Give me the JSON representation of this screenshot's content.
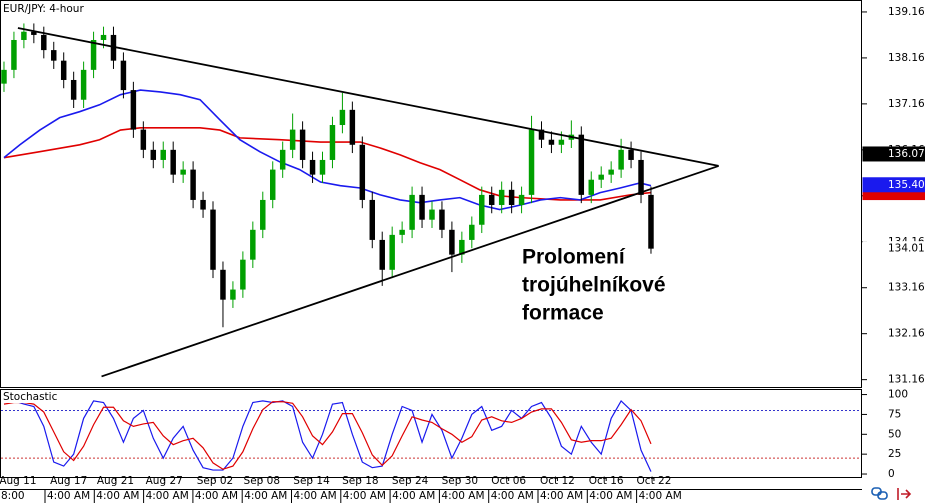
{
  "chart_data": [
    {
      "type": "candlestick",
      "title": "EUR/JPY: 4-hour",
      "xlim": [
        -0.4,
        86.2
      ],
      "xticks": [
        {
          "value": 1.4,
          "label": "Aug 11"
        },
        {
          "value": 6.5,
          "label": "Aug 17"
        },
        {
          "value": 11.2,
          "label": "Aug 21"
        },
        {
          "value": 16.1,
          "label": "Aug 27"
        },
        {
          "value": 21.2,
          "label": "Sep 02"
        },
        {
          "value": 25.9,
          "label": "Sep 08"
        },
        {
          "value": 30.9,
          "label": "Sep 14"
        },
        {
          "value": 35.8,
          "label": "Sep 18"
        },
        {
          "value": 40.8,
          "label": "Sep 24"
        },
        {
          "value": 45.8,
          "label": "Sep 30"
        },
        {
          "value": 50.7,
          "label": "Oct 06"
        },
        {
          "value": 55.6,
          "label": "Oct 12"
        },
        {
          "value": 60.5,
          "label": "Oct 16"
        },
        {
          "value": 65.3,
          "label": "Oct 22"
        }
      ],
      "time_labels": [
        "8:00",
        "4:00 AM",
        "4:00 AM",
        "4:00 AM",
        "4:00 AM",
        "4:00 AM",
        "4:00 AM",
        "4:00 AM",
        "4:00 AM",
        "4:00 AM",
        "4:00 AM",
        "4:00 AM",
        "4:00 AM",
        "4:00 AM"
      ],
      "ylim": [
        131.0,
        139.42
      ],
      "yticks": [
        131.16,
        132.16,
        133.16,
        134.16,
        135.16,
        136.16,
        137.16,
        138.16,
        139.16
      ],
      "up_color": "#00a000",
      "down_color": "#000000",
      "open": [
        137.6,
        137.9,
        138.55,
        138.73,
        138.66,
        138.33,
        138.1,
        137.68,
        137.25,
        137.9,
        138.55,
        138.66,
        138.1,
        137.46,
        136.6,
        136.16,
        135.94,
        136.16,
        135.62,
        135.73,
        135.07,
        134.86,
        133.55,
        132.9,
        133.12,
        133.77,
        134.42,
        135.07,
        135.73,
        136.16,
        136.6,
        135.94,
        135.62,
        135.94,
        136.7,
        137.03,
        136.27,
        135.07,
        134.2,
        133.55,
        134.31,
        134.42,
        135.18,
        134.64,
        134.86,
        134.42,
        133.88,
        134.2,
        134.53,
        135.18,
        134.96,
        135.29,
        134.96,
        135.18,
        136.6,
        136.38,
        136.27,
        136.38,
        136.49,
        135.18,
        135.51,
        135.62,
        135.73,
        136.16,
        135.94,
        135.18
      ],
      "high": [
        138.08,
        138.73,
        138.91,
        138.91,
        138.84,
        138.51,
        138.28,
        137.86,
        138.08,
        138.73,
        138.84,
        138.84,
        138.28,
        137.64,
        136.78,
        136.34,
        136.34,
        136.34,
        135.91,
        135.91,
        135.25,
        135.04,
        133.73,
        133.3,
        133.95,
        134.6,
        135.25,
        135.91,
        136.34,
        136.95,
        136.78,
        136.12,
        136.12,
        136.88,
        137.4,
        137.21,
        136.45,
        135.25,
        134.38,
        134.49,
        134.6,
        135.36,
        135.36,
        135.04,
        135.04,
        134.6,
        134.38,
        134.71,
        135.36,
        135.36,
        135.47,
        135.47,
        135.36,
        136.9,
        136.78,
        136.56,
        136.56,
        136.8,
        136.67,
        135.69,
        135.8,
        135.91,
        136.4,
        136.34,
        136.12,
        135.36
      ],
      "low": [
        137.42,
        137.72,
        138.37,
        138.48,
        138.15,
        137.92,
        137.5,
        137.07,
        137.07,
        137.72,
        138.37,
        137.92,
        137.28,
        136.42,
        135.98,
        135.76,
        135.76,
        135.44,
        135.44,
        134.89,
        134.68,
        133.37,
        132.3,
        132.72,
        132.94,
        133.59,
        134.24,
        134.89,
        135.55,
        135.98,
        135.76,
        135.44,
        135.44,
        135.76,
        136.52,
        136.09,
        134.89,
        134.02,
        133.2,
        133.37,
        134.13,
        134.24,
        134.46,
        134.46,
        134.24,
        133.5,
        133.7,
        134.02,
        134.35,
        134.78,
        134.78,
        134.78,
        134.78,
        135.0,
        136.2,
        136.09,
        136.09,
        136.2,
        135.0,
        135.0,
        135.33,
        135.44,
        135.55,
        135.76,
        135.0,
        133.9
      ],
      "close": [
        137.9,
        138.55,
        138.73,
        138.66,
        138.33,
        138.1,
        137.68,
        137.25,
        137.9,
        138.55,
        138.66,
        138.1,
        137.46,
        136.6,
        136.16,
        135.94,
        136.16,
        135.62,
        135.73,
        135.07,
        134.86,
        133.55,
        132.9,
        133.12,
        133.77,
        134.42,
        135.07,
        135.73,
        136.16,
        136.6,
        135.94,
        135.62,
        135.94,
        136.7,
        137.03,
        136.27,
        135.07,
        134.2,
        133.55,
        134.31,
        134.42,
        135.18,
        134.64,
        134.86,
        134.42,
        133.88,
        134.2,
        134.53,
        135.18,
        134.96,
        135.29,
        134.96,
        135.18,
        136.6,
        136.38,
        136.27,
        136.38,
        136.49,
        135.18,
        135.51,
        135.62,
        135.73,
        136.16,
        135.94,
        135.18,
        134.01
      ],
      "overlays": [
        {
          "color": "#e00000",
          "x": [
            0,
            3.6,
            7.6,
            9.6,
            11.7,
            13.7,
            19.7,
            21.7,
            23.7,
            27.7,
            31.8,
            35.8,
            37.8,
            39.8,
            41.8,
            43.8,
            45.8,
            47.8,
            49.8,
            51.9,
            55.9,
            59.9,
            62.9,
            65
          ],
          "values": [
            135.99,
            136.12,
            136.27,
            136.38,
            136.59,
            136.64,
            136.64,
            136.59,
            136.42,
            136.38,
            136.33,
            136.33,
            136.2,
            136.05,
            135.88,
            135.73,
            135.51,
            135.29,
            135.16,
            135.12,
            135.07,
            135.07,
            135.18,
            135.23
          ]
        },
        {
          "color": "#1a1aee",
          "x": [
            0,
            1.6,
            3.6,
            5.6,
            7.6,
            9.6,
            11.7,
            13.7,
            15.7,
            17.7,
            19.7,
            21.7,
            23.7,
            25.7,
            27.7,
            29.7,
            31.8,
            33.8,
            35.8,
            37.8,
            39.8,
            41.8,
            43.8,
            45.8,
            47.8,
            49.8,
            51.9,
            53.9,
            55.9,
            57.9,
            59.9,
            61.9,
            63.9,
            65
          ],
          "values": [
            135.99,
            136.27,
            136.59,
            136.86,
            136.99,
            137.14,
            137.36,
            137.46,
            137.42,
            137.36,
            137.25,
            136.81,
            136.38,
            136.12,
            135.9,
            135.73,
            135.46,
            135.38,
            135.33,
            135.18,
            135.07,
            135.01,
            135.07,
            135.12,
            134.96,
            134.86,
            134.96,
            135.07,
            135.12,
            135.07,
            135.23,
            135.33,
            135.44,
            135.38
          ]
        }
      ],
      "trendlines": [
        {
          "color": "#000000",
          "x": [
            1.4,
            71.8
          ],
          "values": [
            138.81,
            135.81
          ]
        },
        {
          "color": "#000000",
          "x": [
            9.8,
            71.8
          ],
          "values": [
            131.23,
            135.81
          ]
        }
      ],
      "price_markers": [
        {
          "value": 136.07,
          "label": "136.07",
          "color": "#000000",
          "text_color": "#ffffff"
        },
        {
          "value": 135.23,
          "color": "#e00000"
        },
        {
          "value": 135.4,
          "label": "135.40",
          "color": "#1a1aee",
          "text_color": "#ffffff"
        },
        {
          "value": 134.01,
          "label": "134.01",
          "color": "#ffffff",
          "text_color": "#000000"
        }
      ],
      "annotation": [
        "Prolomení",
        "trojúhelníkové",
        "formace"
      ]
    },
    {
      "type": "stochastic",
      "title": "Stochastic",
      "ylim": [
        -5,
        107
      ],
      "yticks": [
        0,
        25,
        50,
        75,
        100
      ],
      "levels": [
        {
          "value": 80,
          "color": "#3333cc"
        },
        {
          "value": 20,
          "color": "#cc3333"
        }
      ],
      "series": [
        {
          "color": "#1a1aee",
          "values": [
            90,
            92,
            88,
            85,
            60,
            15,
            10,
            25,
            70,
            92,
            90,
            70,
            40,
            70,
            80,
            45,
            20,
            45,
            60,
            30,
            8,
            5,
            5,
            20,
            60,
            90,
            92,
            90,
            92,
            85,
            40,
            20,
            50,
            88,
            90,
            50,
            15,
            8,
            10,
            50,
            85,
            80,
            40,
            75,
            55,
            20,
            45,
            75,
            85,
            55,
            60,
            80,
            70,
            85,
            90,
            70,
            35,
            25,
            60,
            40,
            25,
            70,
            92,
            80,
            30,
            3
          ]
        },
        {
          "color": "#e00000",
          "values": [
            88,
            90,
            90,
            88,
            78,
            53,
            28,
            17,
            35,
            62,
            84,
            84,
            67,
            60,
            63,
            65,
            48,
            37,
            42,
            45,
            33,
            14,
            6,
            10,
            28,
            57,
            81,
            91,
            91,
            89,
            72,
            48,
            37,
            53,
            76,
            76,
            52,
            24,
            11,
            23,
            48,
            72,
            68,
            65,
            57,
            50,
            40,
            47,
            68,
            72,
            67,
            65,
            70,
            78,
            82,
            82,
            65,
            43,
            40,
            42,
            42,
            45,
            62,
            81,
            67,
            38
          ]
        }
      ]
    }
  ]
}
